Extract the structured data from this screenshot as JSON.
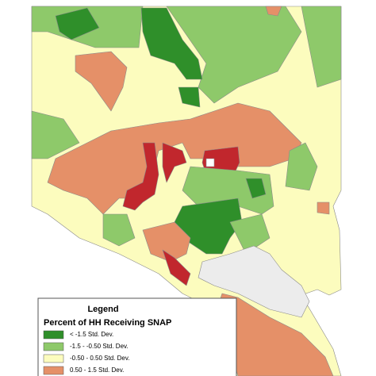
{
  "legend": {
    "heading": "Legend",
    "title": "Percent of HH Receiving SNAP",
    "items": [
      {
        "label": "< -1.5 Std. Dev.",
        "color": "#2f8f2a"
      },
      {
        "label": "-1.5 - -0.50 Std. Dev.",
        "color": "#8ec96a"
      },
      {
        "label": "-0.50 - 0.50 Std. Dev.",
        "color": "#fcfcbe"
      },
      {
        "label": "0.50 - 1.5 Std. Dev.",
        "color": "#e59068"
      }
    ]
  }
}
